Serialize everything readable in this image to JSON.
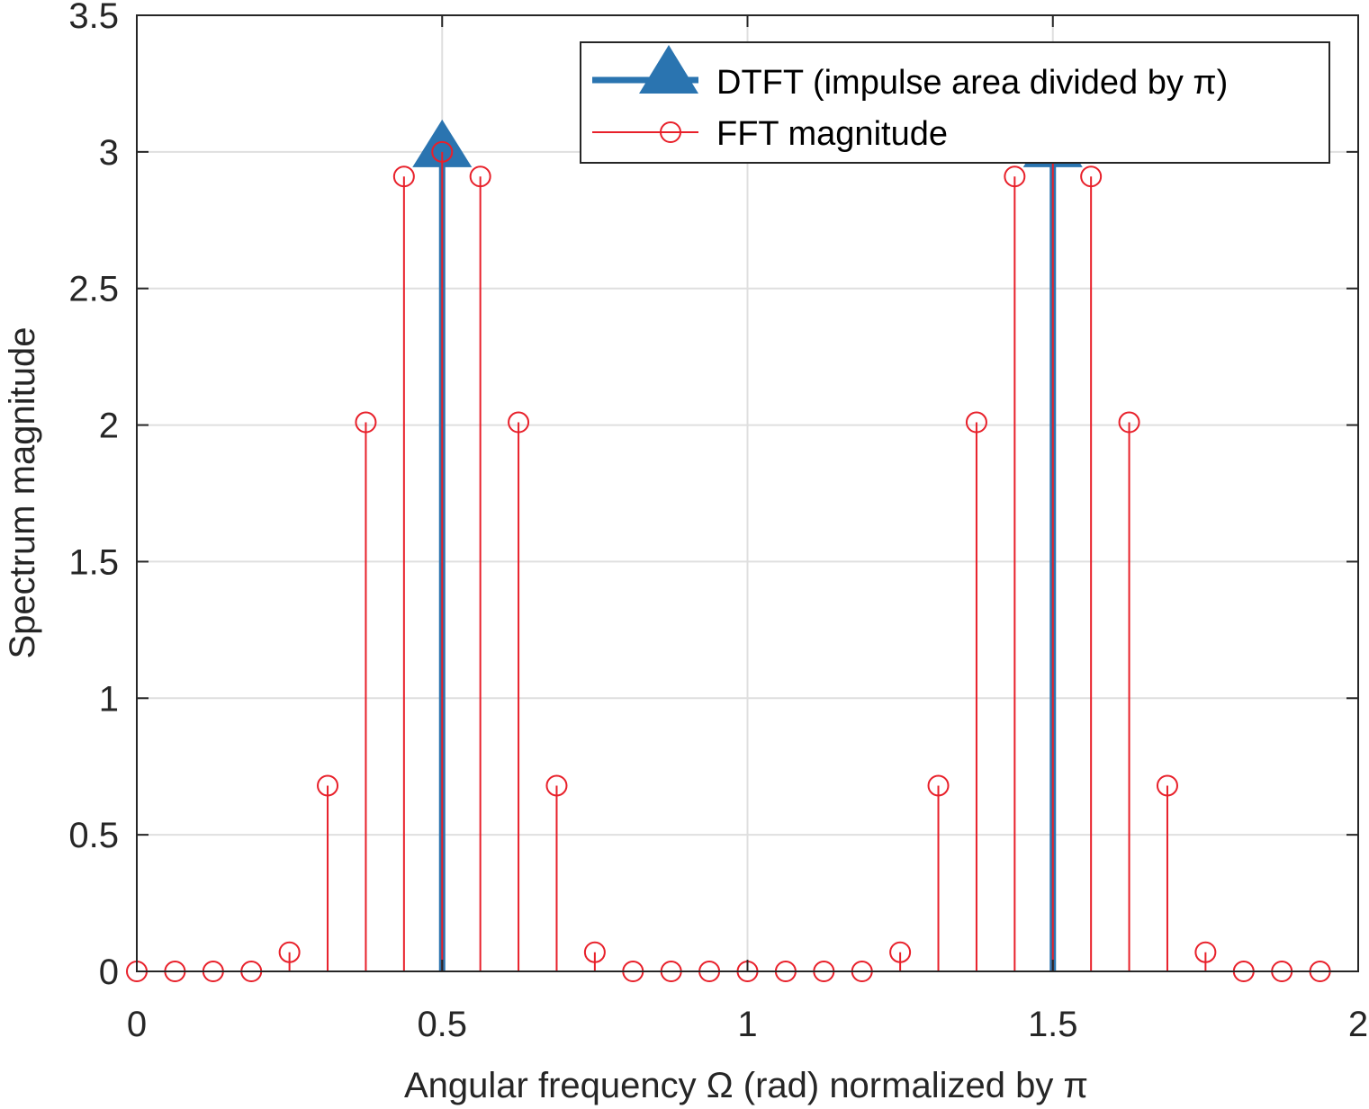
{
  "chart_data": {
    "type": "stem",
    "xlabel": "Angular frequency Ω (rad) normalized by π",
    "ylabel": "Spectrum magnitude",
    "xlim": [
      0,
      2
    ],
    "ylim": [
      0,
      3.5
    ],
    "xticks": [
      0,
      0.5,
      1,
      1.5,
      2
    ],
    "xtick_labels": [
      "0",
      "0.5",
      "1",
      "1.5",
      "2"
    ],
    "yticks": [
      0,
      0.5,
      1,
      1.5,
      2,
      2.5,
      3,
      3.5
    ],
    "ytick_labels": [
      "0",
      "0.5",
      "1",
      "1.5",
      "2",
      "2.5",
      "3",
      "3.5"
    ],
    "grid": true,
    "legend_position": "top-right",
    "series": [
      {
        "name": "DTFT (impulse area divided by π)",
        "style": "stem-triangle",
        "color": "#2a74b0",
        "x": [
          0.5,
          1.5
        ],
        "y": [
          3.0,
          3.0
        ]
      },
      {
        "name": "FFT magnitude",
        "style": "stem-circle",
        "color": "#e8202a",
        "x": [
          0,
          0.0625,
          0.125,
          0.1875,
          0.25,
          0.3125,
          0.375,
          0.4375,
          0.5,
          0.5625,
          0.625,
          0.6875,
          0.75,
          0.8125,
          0.875,
          0.9375,
          1.0,
          1.0625,
          1.125,
          1.1875,
          1.25,
          1.3125,
          1.375,
          1.4375,
          1.5,
          1.5625,
          1.625,
          1.6875,
          1.75,
          1.8125,
          1.875,
          1.9375
        ],
        "y": [
          0,
          0,
          0,
          0,
          0.07,
          0.68,
          2.01,
          2.91,
          3.0,
          2.91,
          2.01,
          0.68,
          0.07,
          0,
          0,
          0,
          0,
          0,
          0,
          0,
          0.07,
          0.68,
          2.01,
          2.91,
          3.0,
          2.91,
          2.01,
          0.68,
          0.07,
          0,
          0,
          0
        ]
      }
    ]
  }
}
